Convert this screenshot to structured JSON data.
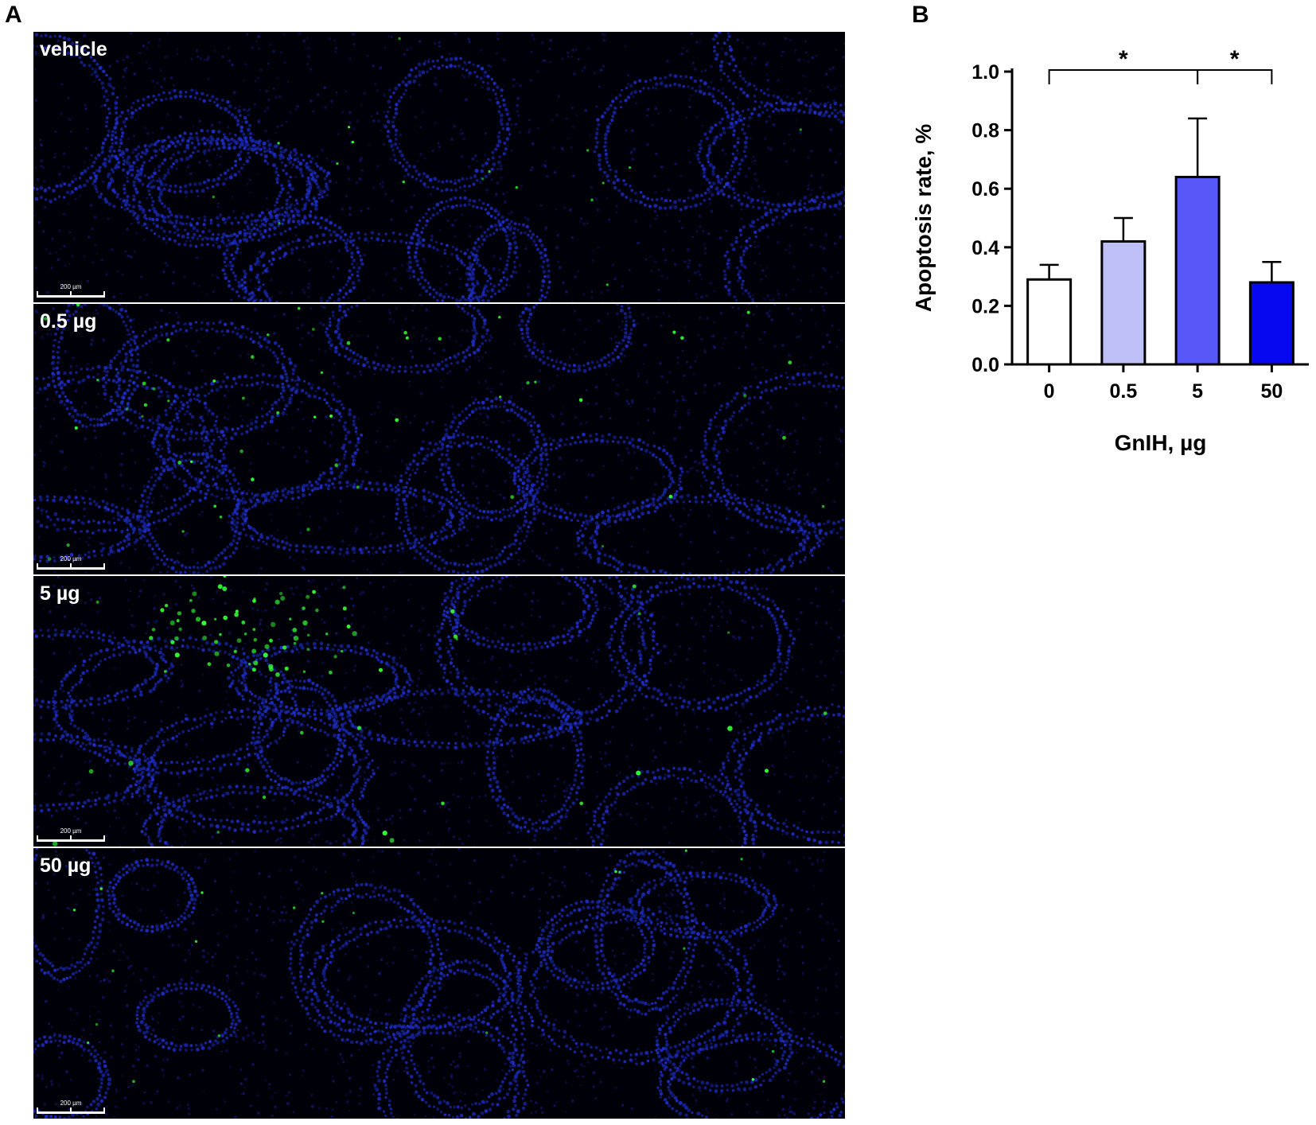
{
  "panel_a": {
    "letter": "A",
    "images": [
      {
        "label": "vehicle",
        "scale_text": "200 µm",
        "green_density": 0.1
      },
      {
        "label": "0.5 µg",
        "scale_text": "200 µm",
        "green_density": 0.5
      },
      {
        "label": "5 µg",
        "scale_text": "200 µm",
        "green_density": 1.0
      },
      {
        "label": "50 µg",
        "scale_text": "200 µm",
        "green_density": 0.15
      }
    ]
  },
  "panel_b": {
    "letter": "B"
  },
  "chart_data": {
    "type": "bar",
    "categories": [
      "0",
      "0.5",
      "5",
      "50"
    ],
    "values": [
      0.29,
      0.42,
      0.64,
      0.28
    ],
    "errors": [
      0.05,
      0.08,
      0.2,
      0.07
    ],
    "bar_colors": [
      "#ffffff",
      "#c0c0f8",
      "#5858f8",
      "#0808f0"
    ],
    "xlabel": "GnIH, µg",
    "ylabel": "Apoptosis rate, %",
    "ylim": [
      0,
      1.0
    ],
    "yticks": [
      "0.0",
      "0.2",
      "0.4",
      "0.6",
      "0.8",
      "1.0"
    ],
    "significance": [
      {
        "from": "0",
        "to": "5",
        "label": "*"
      },
      {
        "from": "5",
        "to": "50",
        "label": "*"
      }
    ]
  }
}
